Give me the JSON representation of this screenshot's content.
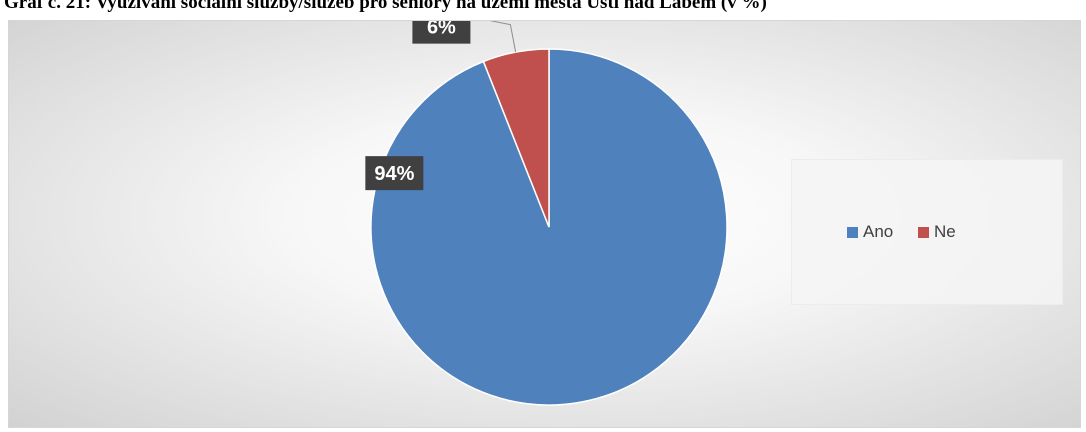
{
  "title": "Graf č. 21: Využívání sociální služby/služeb pro seniory na území města Ústí nad Labem (v %)",
  "chart_data": {
    "type": "pie",
    "categories": [
      "Ano",
      "Ne"
    ],
    "values": [
      94,
      6
    ],
    "labels": [
      "94%",
      "6%"
    ],
    "colors": [
      "#4F81BD",
      "#C0504D"
    ],
    "legend_position": "right"
  },
  "legend": {
    "items": [
      {
        "label": "Ano",
        "color": "#4F81BD"
      },
      {
        "label": "Ne",
        "color": "#C0504D"
      }
    ]
  }
}
